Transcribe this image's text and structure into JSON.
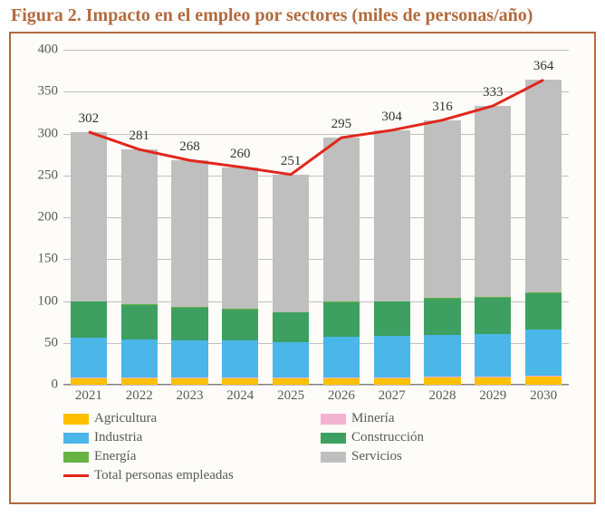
{
  "title": "Figura 2. Impacto en el empleo por sectores (miles de personas/año)",
  "chart": {
    "type": "stacked-bar-with-line",
    "background_color": "#fefcf9",
    "frame_color": "#b26a3c",
    "grid_color": "#bfbfbf",
    "text_color": "#595959",
    "title_fontsize": 20,
    "axis_fontsize": 15,
    "ylim": [
      0,
      400
    ],
    "ytick_step": 50,
    "categories": [
      "2021",
      "2022",
      "2023",
      "2024",
      "2025",
      "2026",
      "2027",
      "2028",
      "2029",
      "2030"
    ],
    "series": [
      {
        "key": "agricultura",
        "label": "Agricultura",
        "color": "#ffc000"
      },
      {
        "key": "mineria",
        "label": "Minería",
        "color": "#f4b4d0"
      },
      {
        "key": "industria",
        "label": "Industria",
        "color": "#4bb6e8"
      },
      {
        "key": "construccion",
        "label": "Construcción",
        "color": "#3da060"
      },
      {
        "key": "energia",
        "label": "Energía",
        "color": "#66b244"
      },
      {
        "key": "servicios",
        "label": "Servicios",
        "color": "#bfbfbf"
      }
    ],
    "stacks": {
      "agricultura": [
        8,
        8,
        8,
        8,
        8,
        8,
        8,
        9,
        9,
        10
      ],
      "mineria": [
        0.5,
        0.5,
        0.5,
        0.5,
        0.5,
        0.5,
        0.5,
        0.5,
        0.5,
        0.5
      ],
      "industria": [
        47.5,
        45.5,
        44.5,
        44.5,
        42.5,
        48.5,
        49.5,
        50.5,
        51.5,
        55.5
      ],
      "construccion": [
        43,
        41,
        39,
        37,
        35,
        41,
        41,
        43,
        43,
        43
      ],
      "energia": [
        1,
        1,
        1,
        1,
        1,
        1,
        1,
        1,
        1,
        1
      ],
      "servicios": [
        202,
        185,
        175,
        169,
        164,
        196,
        204,
        212,
        228,
        254
      ]
    },
    "line": {
      "label": "Total personas empleadas",
      "color": "#e1261c",
      "width": 3,
      "values": [
        302,
        281,
        268,
        260,
        251,
        295,
        304,
        316,
        333,
        364
      ]
    },
    "bar_width": 0.72
  }
}
